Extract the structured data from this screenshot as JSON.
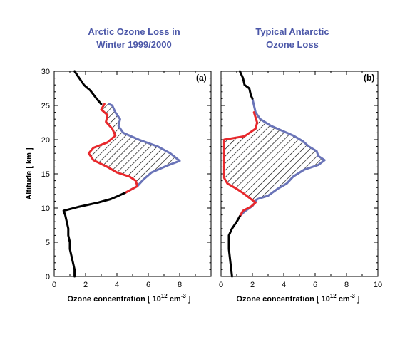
{
  "colors": {
    "before": "#000000",
    "outside": "#6a74b8",
    "inside": "#e8282c",
    "title": "#4b57a8"
  },
  "chart_data": [
    {
      "type": "line",
      "panel": "(a)",
      "title": "Arctic Ozone Loss in Winter 1999/2000",
      "title_lines": [
        "Arctic Ozone Loss in",
        "Winter 1999/2000"
      ],
      "xlabel": "Ozone concentration [ 10",
      "xlabel_sup": "12",
      "xlabel_unit": " cm",
      "xlabel_unit_sup": "-3",
      "xlabel_end": " ]",
      "ylabel": "Altitude [ km ]",
      "xlim": [
        0,
        10
      ],
      "ylim": [
        0,
        30
      ],
      "xticks": [
        "0",
        "2",
        "4",
        "6",
        "8",
        ""
      ],
      "yticks": [
        "0",
        "5",
        "10",
        "15",
        "20",
        "25",
        "30"
      ],
      "series": [
        {
          "color": "#000000",
          "points": [
            [
              1.3,
              0
            ],
            [
              1.3,
              1
            ],
            [
              1.2,
              2
            ],
            [
              1.1,
              3
            ],
            [
              1.0,
              4
            ],
            [
              1.0,
              5
            ],
            [
              0.9,
              6
            ],
            [
              0.9,
              7
            ],
            [
              0.8,
              8
            ],
            [
              0.7,
              9
            ],
            [
              0.6,
              9.6
            ],
            [
              1.6,
              10.2
            ],
            [
              2.8,
              10.8
            ],
            [
              3.6,
              11.3
            ],
            [
              4.0,
              11.7
            ],
            [
              4.5,
              12.2
            ]
          ]
        },
        {
          "color": "#000000",
          "points": [
            [
              1.3,
              30
            ],
            [
              1.6,
              29
            ],
            [
              1.9,
              28
            ],
            [
              2.3,
              27.2
            ],
            [
              2.7,
              26
            ],
            [
              3.0,
              25.2
            ]
          ]
        },
        {
          "color": "#6a74b8",
          "points": [
            [
              4.5,
              12.2
            ],
            [
              5.3,
              13.2
            ],
            [
              5.7,
              14.2
            ],
            [
              6.2,
              15.2
            ],
            [
              7.2,
              16.2
            ],
            [
              8.0,
              16.9
            ],
            [
              7.4,
              18
            ],
            [
              6.6,
              19
            ],
            [
              5.4,
              20
            ],
            [
              4.4,
              21
            ],
            [
              4.1,
              22
            ],
            [
              4.2,
              23
            ],
            [
              3.9,
              24
            ],
            [
              3.7,
              25
            ],
            [
              3.5,
              25.2
            ]
          ]
        },
        {
          "color": "#e8282c",
          "points": [
            [
              4.5,
              12.2
            ],
            [
              5.3,
              13.2
            ],
            [
              5.2,
              14
            ],
            [
              4.8,
              14.6
            ],
            [
              4.0,
              15.2
            ],
            [
              3.4,
              16
            ],
            [
              2.5,
              17
            ],
            [
              2.2,
              18
            ],
            [
              2.5,
              18.8
            ],
            [
              3.4,
              19.6
            ],
            [
              3.9,
              20.6
            ],
            [
              3.7,
              21.6
            ],
            [
              3.3,
              22.6
            ],
            [
              3.4,
              23.6
            ],
            [
              3.0,
              24.4
            ],
            [
              3.2,
              25.2
            ]
          ]
        }
      ]
    },
    {
      "type": "line",
      "panel": "(b)",
      "title": "Typical Antarctic Ozone Loss",
      "title_lines": [
        "Typical Antarctic",
        "Ozone Loss"
      ],
      "xlabel": "Ozone concentration [ 10",
      "xlabel_sup": "12",
      "xlabel_unit": " cm",
      "xlabel_unit_sup": "-3",
      "xlabel_end": " ]",
      "xlim": [
        0,
        10
      ],
      "ylim": [
        0,
        30
      ],
      "xticks": [
        "0",
        "2",
        "4",
        "6",
        "8",
        "10"
      ],
      "yticks": [],
      "series": [
        {
          "color": "#000000",
          "points": [
            [
              0.7,
              0
            ],
            [
              0.6,
              2
            ],
            [
              0.5,
              4
            ],
            [
              0.5,
              6
            ],
            [
              0.7,
              7
            ],
            [
              1.0,
              8
            ],
            [
              1.2,
              8.8
            ]
          ]
        },
        {
          "color": "#000000",
          "points": [
            [
              1.2,
              30
            ],
            [
              1.4,
              29
            ],
            [
              1.5,
              28
            ],
            [
              1.8,
              27.5
            ],
            [
              1.9,
              26.5
            ],
            [
              2.0,
              26
            ]
          ]
        },
        {
          "color": "#6a74b8",
          "points": [
            [
              1.2,
              8.8
            ],
            [
              1.5,
              9.5
            ],
            [
              2.0,
              10.3
            ],
            [
              2.3,
              11.3
            ],
            [
              3.0,
              11.8
            ],
            [
              3.6,
              12.8
            ],
            [
              4.2,
              13.6
            ],
            [
              4.6,
              14.6
            ],
            [
              5.3,
              15.6
            ],
            [
              6.2,
              16.3
            ],
            [
              6.6,
              17
            ],
            [
              6.2,
              17.6
            ],
            [
              6.1,
              18.3
            ],
            [
              5.6,
              19
            ],
            [
              5.2,
              19.8
            ],
            [
              4.6,
              20.6
            ],
            [
              3.9,
              21.3
            ],
            [
              3.2,
              22
            ],
            [
              2.5,
              23
            ],
            [
              2.2,
              24
            ],
            [
              2.1,
              25
            ],
            [
              2.0,
              26
            ]
          ]
        },
        {
          "color": "#e8282c",
          "points": [
            [
              1.2,
              8.8
            ],
            [
              1.4,
              9.6
            ],
            [
              1.9,
              10.2
            ],
            [
              2.2,
              10.8
            ],
            [
              1.8,
              11.5
            ],
            [
              1.4,
              12.2
            ],
            [
              1.0,
              12.8
            ],
            [
              0.4,
              13.6
            ],
            [
              0.2,
              14.4
            ],
            [
              0.2,
              16
            ],
            [
              0.2,
              18
            ],
            [
              0.2,
              20
            ],
            [
              1.5,
              20.5
            ],
            [
              2.2,
              21.6
            ],
            [
              2.3,
              22.5
            ],
            [
              2.1,
              24
            ]
          ]
        }
      ]
    }
  ]
}
